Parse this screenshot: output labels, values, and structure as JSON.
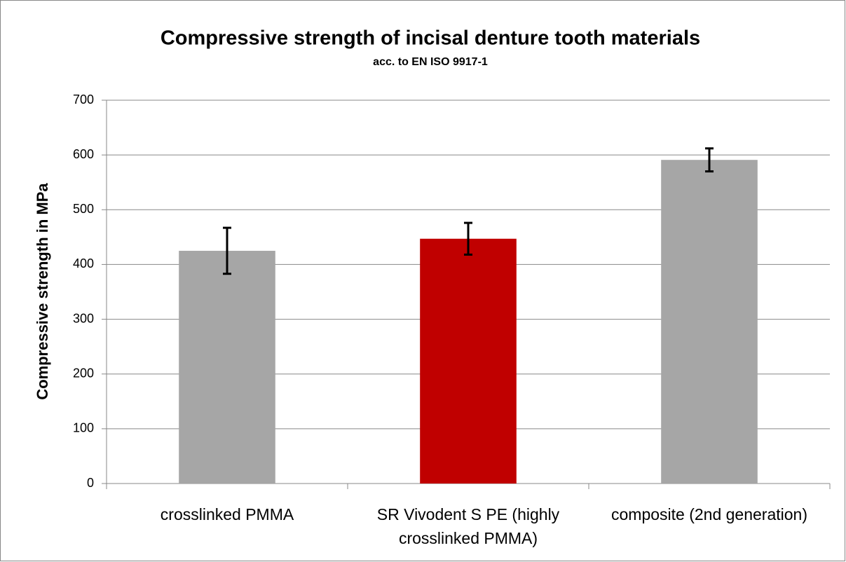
{
  "chart_data": {
    "type": "bar",
    "title": "Compressive strength of incisal denture tooth materials",
    "subtitle": "acc. to EN ISO 9917-1",
    "y_label": "Compressive strength in MPa",
    "categories": [
      "crosslinked PMMA",
      "SR Vivodent S PE (highly crosslinked PMMA)",
      "composite (2nd generation)"
    ],
    "values": [
      425,
      447,
      591
    ],
    "errors": [
      42,
      29,
      21
    ],
    "colors": [
      "#a6a6a6",
      "#c00000",
      "#a6a6a6"
    ],
    "ylim": [
      0,
      700
    ],
    "yticks": [
      0,
      100,
      200,
      300,
      400,
      500,
      600,
      700
    ],
    "grid": true
  }
}
